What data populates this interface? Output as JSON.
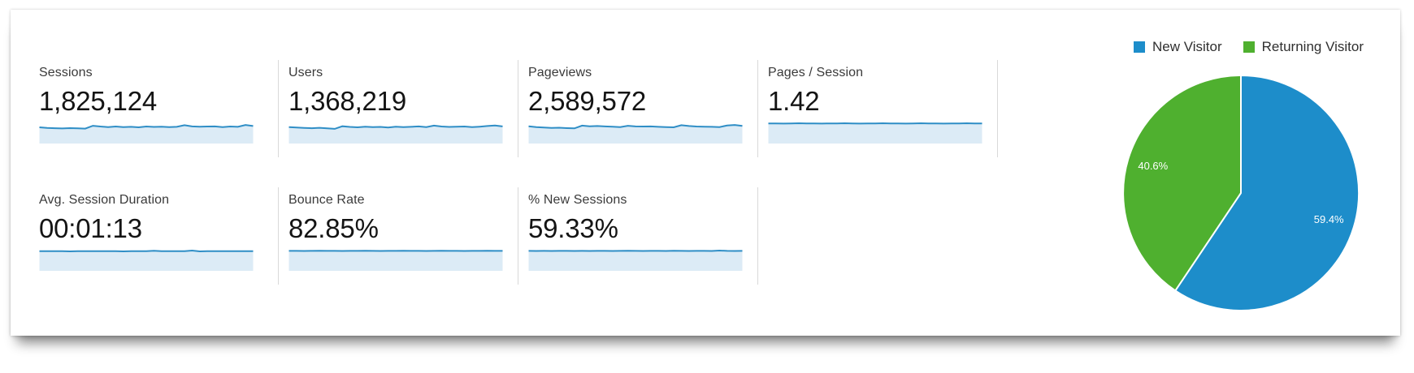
{
  "colors": {
    "new_visitor_blue": "#1d8dca",
    "returning_visitor_green": "#4fb02f",
    "spark_line": "#2f8ec6",
    "spark_fill": "#dcebf6",
    "divider": "#d9d9d9",
    "label_text": "#3a3a3a",
    "value_text": "#141414"
  },
  "legend": {
    "items": [
      {
        "label": "New Visitor",
        "color": "#1d8dca"
      },
      {
        "label": "Returning Visitor",
        "color": "#4fb02f"
      }
    ]
  },
  "metrics": {
    "cards": [
      {
        "label": "Sessions",
        "value": "1,825,124"
      },
      {
        "label": "Users",
        "value": "1,368,219"
      },
      {
        "label": "Pageviews",
        "value": "2,589,572"
      },
      {
        "label": "Pages / Session",
        "value": "1.42"
      },
      {
        "label": "Avg. Session Duration",
        "value": "00:01:13"
      },
      {
        "label": "Bounce Rate",
        "value": "82.85%"
      },
      {
        "label": "% New Sessions",
        "value": "59.33%"
      }
    ]
  },
  "chart_data": [
    {
      "type": "pie",
      "labels": [
        "New Visitor",
        "Returning Visitor"
      ],
      "values": [
        59.4,
        40.6
      ],
      "value_labels": [
        "59.4%",
        "40.6%"
      ],
      "colors": [
        "#1d8dca",
        "#4fb02f"
      ],
      "legend_position": "top-right",
      "start_angle_deg": 0,
      "direction": "clockwise"
    },
    {
      "type": "area",
      "name": "metric-sparklines",
      "line_color": "#2f8ec6",
      "fill_color": "#dcebf6",
      "series": [
        {
          "name": "Sessions",
          "values": [
            0.5,
            0.45,
            0.43,
            0.41,
            0.44,
            0.42,
            0.4,
            0.62,
            0.56,
            0.52,
            0.56,
            0.51,
            0.54,
            0.5,
            0.56,
            0.53,
            0.55,
            0.52,
            0.54,
            0.66,
            0.57,
            0.55,
            0.56,
            0.57,
            0.52,
            0.56,
            0.54,
            0.68,
            0.6
          ]
        },
        {
          "name": "Users",
          "values": [
            0.52,
            0.48,
            0.45,
            0.43,
            0.46,
            0.42,
            0.38,
            0.58,
            0.53,
            0.5,
            0.55,
            0.51,
            0.53,
            0.49,
            0.55,
            0.52,
            0.54,
            0.57,
            0.52,
            0.63,
            0.56,
            0.53,
            0.55,
            0.56,
            0.51,
            0.55,
            0.6,
            0.64,
            0.57
          ]
        },
        {
          "name": "Pageviews",
          "values": [
            0.58,
            0.52,
            0.48,
            0.45,
            0.47,
            0.44,
            0.42,
            0.63,
            0.58,
            0.6,
            0.57,
            0.55,
            0.52,
            0.62,
            0.57,
            0.56,
            0.57,
            0.54,
            0.52,
            0.5,
            0.66,
            0.6,
            0.56,
            0.55,
            0.54,
            0.52,
            0.64,
            0.68,
            0.61
          ]
        },
        {
          "name": "Pages / Session",
          "values": [
            0.8,
            0.8,
            0.79,
            0.8,
            0.81,
            0.8,
            0.8,
            0.79,
            0.8,
            0.8,
            0.81,
            0.8,
            0.79,
            0.8,
            0.8,
            0.81,
            0.8,
            0.8,
            0.79,
            0.8,
            0.81,
            0.8,
            0.8,
            0.79,
            0.8,
            0.8,
            0.81,
            0.8,
            0.8
          ]
        },
        {
          "name": "Avg. Session Duration",
          "values": [
            0.77,
            0.76,
            0.77,
            0.76,
            0.75,
            0.77,
            0.76,
            0.77,
            0.76,
            0.77,
            0.76,
            0.75,
            0.77,
            0.76,
            0.77,
            0.8,
            0.76,
            0.77,
            0.76,
            0.77,
            0.81,
            0.75,
            0.77,
            0.76,
            0.77,
            0.76,
            0.77,
            0.76,
            0.77
          ]
        },
        {
          "name": "Bounce Rate",
          "values": [
            0.79,
            0.79,
            0.78,
            0.79,
            0.8,
            0.79,
            0.79,
            0.78,
            0.79,
            0.79,
            0.8,
            0.79,
            0.78,
            0.79,
            0.79,
            0.8,
            0.79,
            0.79,
            0.78,
            0.79,
            0.8,
            0.79,
            0.79,
            0.78,
            0.79,
            0.79,
            0.8,
            0.79,
            0.79
          ]
        },
        {
          "name": "% New Sessions",
          "values": [
            0.79,
            0.78,
            0.79,
            0.78,
            0.79,
            0.79,
            0.78,
            0.79,
            0.78,
            0.79,
            0.79,
            0.78,
            0.79,
            0.8,
            0.79,
            0.78,
            0.79,
            0.79,
            0.78,
            0.8,
            0.79,
            0.78,
            0.79,
            0.79,
            0.78,
            0.81,
            0.79,
            0.78,
            0.79
          ]
        }
      ]
    }
  ]
}
